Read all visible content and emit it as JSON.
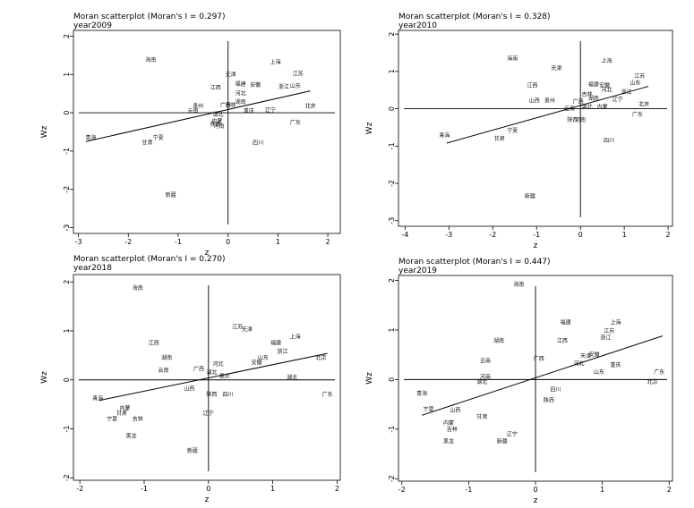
{
  "chart_data": [
    {
      "type": "scatter",
      "title": "Moran scatterplot (Moran's I = 0.297)",
      "subtitle": "year2009",
      "xlabel": "z",
      "ylabel": "Wz",
      "xlim": [
        -3.1,
        2.25
      ],
      "ylim": [
        -3.15,
        2.15
      ],
      "xticks": [
        -3,
        -2,
        -1,
        0,
        1,
        2
      ],
      "yticks": [
        -3,
        -2,
        -1,
        0,
        1,
        2
      ],
      "fit_line": {
        "x": [
          -2.85,
          1.65
        ],
        "y": [
          -0.75,
          0.57
        ]
      },
      "points": [
        {
          "label": "海南",
          "x": -1.55,
          "y": 1.38
        },
        {
          "label": "上海",
          "x": 0.95,
          "y": 1.32
        },
        {
          "label": "江苏",
          "x": 1.4,
          "y": 1.02
        },
        {
          "label": "天津",
          "x": 0.05,
          "y": 1.0
        },
        {
          "label": "福建",
          "x": 0.25,
          "y": 0.75
        },
        {
          "label": "安徽",
          "x": 0.55,
          "y": 0.72
        },
        {
          "label": "浙江",
          "x": 1.12,
          "y": 0.68
        },
        {
          "label": "山东",
          "x": 1.35,
          "y": 0.7
        },
        {
          "label": "江西",
          "x": -0.25,
          "y": 0.65
        },
        {
          "label": "河北",
          "x": 0.25,
          "y": 0.5
        },
        {
          "label": "湖南",
          "x": 0.25,
          "y": 0.28
        },
        {
          "label": "贵州",
          "x": -0.6,
          "y": 0.18
        },
        {
          "label": "广西",
          "x": -0.05,
          "y": 0.2
        },
        {
          "label": "吉林",
          "x": 0.05,
          "y": 0.2
        },
        {
          "label": "云南",
          "x": -0.7,
          "y": 0.05
        },
        {
          "label": "重庆",
          "x": 0.42,
          "y": 0.05
        },
        {
          "label": "辽宁",
          "x": 0.85,
          "y": 0.07
        },
        {
          "label": "北京",
          "x": 1.65,
          "y": 0.18
        },
        {
          "label": "湖北",
          "x": -0.2,
          "y": -0.05
        },
        {
          "label": "内蒙",
          "x": -0.22,
          "y": -0.22
        },
        {
          "label": "陕西",
          "x": -0.25,
          "y": -0.3
        },
        {
          "label": "河南",
          "x": -0.18,
          "y": -0.35
        },
        {
          "label": "广东",
          "x": 1.35,
          "y": -0.25
        },
        {
          "label": "青海",
          "x": -2.75,
          "y": -0.65
        },
        {
          "label": "宁夏",
          "x": -1.4,
          "y": -0.65
        },
        {
          "label": "甘肃",
          "x": -1.62,
          "y": -0.78
        },
        {
          "label": "四川",
          "x": 0.6,
          "y": -0.78
        },
        {
          "label": "新疆",
          "x": -1.15,
          "y": -2.15
        }
      ]
    },
    {
      "type": "scatter",
      "title": "Moran scatterplot (Moran's I = 0.328)",
      "subtitle": "year2010",
      "xlabel": "z",
      "ylabel": "Wz",
      "xlim": [
        -4.15,
        2.1
      ],
      "ylim": [
        -3.15,
        2.1
      ],
      "xticks": [
        -4,
        -3,
        -2,
        -1,
        0,
        1,
        2
      ],
      "yticks": [
        -3,
        -2,
        -1,
        0,
        1,
        2
      ],
      "fit_line": {
        "x": [
          -3.05,
          1.55
        ],
        "y": [
          -0.92,
          0.6
        ]
      },
      "points": [
        {
          "label": "海南",
          "x": -1.55,
          "y": 1.35
        },
        {
          "label": "天津",
          "x": -0.55,
          "y": 1.08
        },
        {
          "label": "上海",
          "x": 0.6,
          "y": 1.28
        },
        {
          "label": "江苏",
          "x": 1.35,
          "y": 0.88
        },
        {
          "label": "山东",
          "x": 1.25,
          "y": 0.7
        },
        {
          "label": "江西",
          "x": -1.1,
          "y": 0.62
        },
        {
          "label": "福建",
          "x": 0.3,
          "y": 0.65
        },
        {
          "label": "安徽",
          "x": 0.55,
          "y": 0.62
        },
        {
          "label": "河北",
          "x": 0.6,
          "y": 0.5
        },
        {
          "label": "浙江",
          "x": 1.05,
          "y": 0.45
        },
        {
          "label": "吉林",
          "x": 0.15,
          "y": 0.38
        },
        {
          "label": "湖南",
          "x": 0.3,
          "y": 0.28
        },
        {
          "label": "辽宁",
          "x": 0.85,
          "y": 0.25
        },
        {
          "label": "北京",
          "x": 1.45,
          "y": 0.12
        },
        {
          "label": "山西",
          "x": -1.05,
          "y": 0.22
        },
        {
          "label": "贵州",
          "x": -0.7,
          "y": 0.22
        },
        {
          "label": "广西",
          "x": -0.05,
          "y": 0.2
        },
        {
          "label": "云南",
          "x": -0.25,
          "y": 0.0
        },
        {
          "label": "内蒙",
          "x": 0.5,
          "y": 0.05
        },
        {
          "label": "湖北",
          "x": 0.15,
          "y": 0.05
        },
        {
          "label": "广东",
          "x": 1.3,
          "y": -0.15
        },
        {
          "label": "陕西",
          "x": -0.18,
          "y": -0.3
        },
        {
          "label": "河南",
          "x": 0.0,
          "y": -0.3
        },
        {
          "label": "青海",
          "x": -3.1,
          "y": -0.72
        },
        {
          "label": "宁夏",
          "x": -1.55,
          "y": -0.58
        },
        {
          "label": "甘肃",
          "x": -1.85,
          "y": -0.8
        },
        {
          "label": "四川",
          "x": 0.65,
          "y": -0.85
        },
        {
          "label": "新疆",
          "x": -1.15,
          "y": -2.35
        }
      ]
    },
    {
      "type": "scatter",
      "title": "Moran scatterplot (Moran's I = 0.270)",
      "subtitle": "year2018",
      "xlabel": "z",
      "ylabel": "Wz",
      "xlim": [
        -2.1,
        2.05
      ],
      "ylim": [
        -2.05,
        2.15
      ],
      "xticks": [
        -2,
        -1,
        0,
        1,
        2
      ],
      "yticks": [
        -2,
        -1,
        0,
        1,
        2
      ],
      "fit_line": {
        "x": [
          -1.7,
          1.85
        ],
        "y": [
          -0.42,
          0.54
        ]
      },
      "points": [
        {
          "label": "海南",
          "x": -1.1,
          "y": 1.88
        },
        {
          "label": "江苏",
          "x": 0.45,
          "y": 1.08
        },
        {
          "label": "天津",
          "x": 0.6,
          "y": 1.03
        },
        {
          "label": "上海",
          "x": 1.35,
          "y": 0.88
        },
        {
          "label": "江西",
          "x": -0.85,
          "y": 0.75
        },
        {
          "label": "福建",
          "x": 1.05,
          "y": 0.75
        },
        {
          "label": "浙江",
          "x": 1.15,
          "y": 0.58
        },
        {
          "label": "湖南",
          "x": -0.65,
          "y": 0.45
        },
        {
          "label": "北京",
          "x": 1.75,
          "y": 0.45
        },
        {
          "label": "山东",
          "x": 0.85,
          "y": 0.45
        },
        {
          "label": "安徽",
          "x": 0.75,
          "y": 0.35
        },
        {
          "label": "河北",
          "x": 0.15,
          "y": 0.32
        },
        {
          "label": "云南",
          "x": -0.7,
          "y": 0.2
        },
        {
          "label": "广西",
          "x": -0.15,
          "y": 0.22
        },
        {
          "label": "湖北",
          "x": 0.05,
          "y": 0.15
        },
        {
          "label": "重庆",
          "x": 0.25,
          "y": 0.08
        },
        {
          "label": "湖北",
          "x": 1.3,
          "y": 0.05
        },
        {
          "label": "山西",
          "x": -0.3,
          "y": -0.18
        },
        {
          "label": "陕西",
          "x": 0.05,
          "y": -0.3
        },
        {
          "label": "四川",
          "x": 0.3,
          "y": -0.3
        },
        {
          "label": "广东",
          "x": 1.85,
          "y": -0.3
        },
        {
          "label": "青海",
          "x": -1.72,
          "y": -0.38
        },
        {
          "label": "内蒙",
          "x": -1.3,
          "y": -0.58
        },
        {
          "label": "甘肃",
          "x": -1.35,
          "y": -0.68
        },
        {
          "label": "辽宁",
          "x": 0.0,
          "y": -0.68
        },
        {
          "label": "宁夏",
          "x": -1.5,
          "y": -0.8
        },
        {
          "label": "吉林",
          "x": -1.1,
          "y": -0.8
        },
        {
          "label": "黑龙",
          "x": -1.2,
          "y": -1.15
        },
        {
          "label": "新疆",
          "x": -0.25,
          "y": -1.45
        }
      ]
    },
    {
      "type": "scatter",
      "title": "Moran scatterplot (Moran's I = 0.447)",
      "subtitle": "year2019",
      "xlabel": "z",
      "ylabel": "Wz",
      "xlim": [
        -2.05,
        2.05
      ],
      "ylim": [
        -2.05,
        2.1
      ],
      "xticks": [
        -2,
        -1,
        0,
        1,
        2
      ],
      "yticks": [
        -2,
        -1,
        0,
        1,
        2
      ],
      "fit_line": {
        "x": [
          -1.7,
          1.9
        ],
        "y": [
          -0.72,
          0.88
        ]
      },
      "points": [
        {
          "label": "海南",
          "x": -0.25,
          "y": 1.92
        },
        {
          "label": "福建",
          "x": 0.45,
          "y": 1.15
        },
        {
          "label": "上海",
          "x": 1.2,
          "y": 1.15
        },
        {
          "label": "江苏",
          "x": 1.1,
          "y": 0.98
        },
        {
          "label": "浙江",
          "x": 1.05,
          "y": 0.85
        },
        {
          "label": "湖南",
          "x": -0.55,
          "y": 0.78
        },
        {
          "label": "江西",
          "x": 0.4,
          "y": 0.78
        },
        {
          "label": "天津",
          "x": 0.75,
          "y": 0.48
        },
        {
          "label": "安徽",
          "x": 0.88,
          "y": 0.5
        },
        {
          "label": "广西",
          "x": 0.05,
          "y": 0.42
        },
        {
          "label": "云南",
          "x": -0.75,
          "y": 0.38
        },
        {
          "label": "河北",
          "x": 0.65,
          "y": 0.32
        },
        {
          "label": "重庆",
          "x": 1.2,
          "y": 0.3
        },
        {
          "label": "山东",
          "x": 0.95,
          "y": 0.15
        },
        {
          "label": "广东",
          "x": 1.85,
          "y": 0.15
        },
        {
          "label": "北京",
          "x": 1.75,
          "y": -0.05
        },
        {
          "label": "河南",
          "x": -0.75,
          "y": 0.05
        },
        {
          "label": "湖北",
          "x": -0.8,
          "y": -0.05
        },
        {
          "label": "四川",
          "x": 0.3,
          "y": -0.2
        },
        {
          "label": "陕西",
          "x": 0.2,
          "y": -0.42
        },
        {
          "label": "青海",
          "x": -1.7,
          "y": -0.28
        },
        {
          "label": "宁夏",
          "x": -1.6,
          "y": -0.6
        },
        {
          "label": "山西",
          "x": -1.2,
          "y": -0.62
        },
        {
          "label": "甘肃",
          "x": -0.8,
          "y": -0.75
        },
        {
          "label": "内蒙",
          "x": -1.3,
          "y": -0.88
        },
        {
          "label": "吉林",
          "x": -1.25,
          "y": -1.0
        },
        {
          "label": "辽宁",
          "x": -0.35,
          "y": -1.1
        },
        {
          "label": "新疆",
          "x": -0.5,
          "y": -1.25
        },
        {
          "label": "黑龙",
          "x": -1.3,
          "y": -1.25
        }
      ]
    }
  ]
}
